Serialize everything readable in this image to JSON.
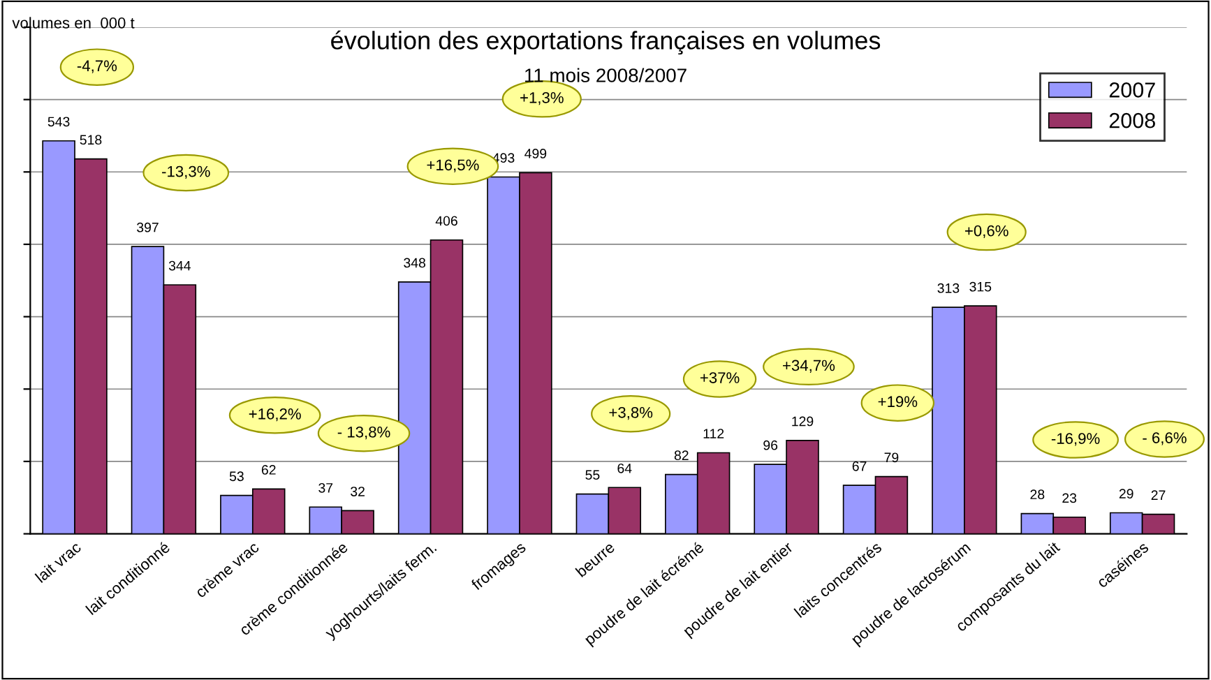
{
  "chart_data": {
    "type": "bar",
    "title": "évolution des exportations françaises en volumes",
    "subtitle": "11 mois 2008/2007",
    "ylabel": "volumes en  000 t",
    "categories": [
      "lait vrac",
      "lait conditionné",
      "crème vrac",
      "crème conditionnée",
      "yoghourts/laits ferm.",
      "fromages",
      "beurre",
      "poudre de lait écrémé",
      "poudre de lait entier",
      "laits concentrés",
      "poudre de lactosérum",
      "composants du lait",
      "caséines"
    ],
    "series": [
      {
        "name": "2007",
        "color": "#9999ff",
        "values": [
          543,
          397,
          53,
          37,
          348,
          493,
          55,
          82,
          96,
          67,
          313,
          28,
          29
        ]
      },
      {
        "name": "2008",
        "color": "#993366",
        "values": [
          518,
          344,
          62,
          32,
          406,
          499,
          64,
          112,
          129,
          79,
          315,
          23,
          27
        ]
      }
    ],
    "data_labels": true,
    "ylim": [
      0,
      700
    ],
    "yticks": [
      {
        "value": 0,
        "label": null
      },
      {
        "value": 100,
        "label": null
      },
      {
        "value": 200,
        "label": null
      },
      {
        "value": 300,
        "label": null
      },
      {
        "value": 400,
        "label": null
      },
      {
        "value": 500,
        "label": null
      },
      {
        "value": 600,
        "label": null
      },
      {
        "value": 700,
        "label": null
      }
    ],
    "tick_labels": "x",
    "grid": "y",
    "legend": "top right",
    "annotations": [
      "-4,7%",
      "-13,3%",
      "+16,2%",
      "- 13,8%",
      "+16,5%",
      "+1,3%",
      "+3,8%",
      "+37%",
      "+34,7%",
      "+19%",
      "+0,6%",
      "-16,9%",
      "- 6,6%"
    ]
  }
}
